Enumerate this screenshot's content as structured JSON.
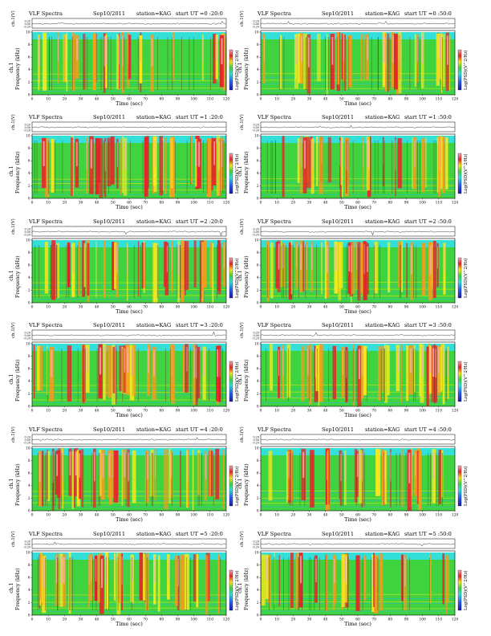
{
  "chart_data": [
    {
      "type": "heatmap",
      "header": {
        "instrument": "VLF Spectra",
        "date": "Sep10/2011",
        "station": "station=KAG",
        "start": "start UT =0 :20:0"
      },
      "ch_label": "ch.1(V)",
      "ch_ticks": [
        "0.20",
        "0.00",
        "-0.20"
      ],
      "ylabel_top": "ch.1",
      "ylabel": "Frequency (kHz)",
      "yticks": [
        "0",
        "2",
        "4",
        "6",
        "8",
        "10"
      ],
      "xlabel": "Time (sec)",
      "xticks": [
        "0",
        "10",
        "20",
        "30",
        "40",
        "50",
        "60",
        "70",
        "80",
        "90",
        "100",
        "110",
        "120"
      ],
      "xlim": [
        0,
        120
      ],
      "ylim": [
        0,
        10
      ],
      "colorbar_label": "Log(PSD)(V^2/Hz)"
    },
    {
      "type": "heatmap",
      "header": {
        "instrument": "VLF Spectra",
        "date": "Sep10/2011",
        "station": "station=KAG",
        "start": "start UT =0 :50:0"
      },
      "ch_label": "ch.1(V)",
      "ch_ticks": [
        "0.20",
        "0.00",
        "-0.20"
      ],
      "ylabel_top": "ch.1",
      "ylabel": "Frequency (kHz)",
      "yticks": [
        "0",
        "2",
        "4",
        "6",
        "8",
        "10"
      ],
      "xlabel": "Time (sec)",
      "xticks": [
        "0",
        "10",
        "20",
        "30",
        "40",
        "50",
        "60",
        "70",
        "80",
        "90",
        "100",
        "110",
        "120"
      ],
      "xlim": [
        0,
        120
      ],
      "ylim": [
        0,
        10
      ],
      "colorbar_label": "Log(PSD)(V^2/Hz)"
    },
    {
      "type": "heatmap",
      "header": {
        "instrument": "VLF Spectra",
        "date": "Sep10/2011",
        "station": "station=KAG",
        "start": "start UT =1 :20:0"
      },
      "ch_label": "ch.1(V)",
      "ch_ticks": [
        "0.20",
        "0.00",
        "-0.20"
      ],
      "ylabel_top": "ch.1",
      "ylabel": "Frequency (kHz)",
      "yticks": [
        "0",
        "2",
        "4",
        "6",
        "8",
        "10"
      ],
      "xlabel": "Time (sec)",
      "xticks": [
        "0",
        "10",
        "20",
        "30",
        "40",
        "50",
        "60",
        "70",
        "80",
        "90",
        "100",
        "110",
        "120"
      ],
      "xlim": [
        0,
        120
      ],
      "ylim": [
        0,
        10
      ],
      "colorbar_label": "Log(PSD)(V^2/Hz)"
    },
    {
      "type": "heatmap",
      "header": {
        "instrument": "VLF Spectra",
        "date": "Sep10/2011",
        "station": "station=KAG",
        "start": "start UT =1 :50:0"
      },
      "ch_label": "ch.1(V)",
      "ch_ticks": [
        "0.20",
        "0.00",
        "-0.20"
      ],
      "ylabel_top": "ch.1",
      "ylabel": "Frequency (kHz)",
      "yticks": [
        "0",
        "2",
        "4",
        "6",
        "8",
        "10"
      ],
      "xlabel": "Time (sec)",
      "xticks": [
        "0",
        "10",
        "20",
        "30",
        "40",
        "50",
        "60",
        "70",
        "80",
        "90",
        "100",
        "110",
        "120"
      ],
      "xlim": [
        0,
        120
      ],
      "ylim": [
        0,
        10
      ],
      "colorbar_label": "Log(PSD)(V^2/Hz)"
    },
    {
      "type": "heatmap",
      "header": {
        "instrument": "VLF Spectra",
        "date": "Sep10/2011",
        "station": "station=KAG",
        "start": "start UT =2 :20:0"
      },
      "ch_label": "ch.1(V)",
      "ch_ticks": [
        "0.20",
        "0.00",
        "-0.20"
      ],
      "ylabel_top": "ch.1",
      "ylabel": "Frequency (kHz)",
      "yticks": [
        "0",
        "2",
        "4",
        "6",
        "8",
        "10"
      ],
      "xlabel": "Time (sec)",
      "xticks": [
        "0",
        "10",
        "20",
        "30",
        "40",
        "50",
        "60",
        "70",
        "80",
        "90",
        "100",
        "110",
        "120"
      ],
      "xlim": [
        0,
        120
      ],
      "ylim": [
        0,
        10
      ],
      "colorbar_label": "Log(PSD)(V^2/Hz)"
    },
    {
      "type": "heatmap",
      "header": {
        "instrument": "VLF Spectra",
        "date": "Sep10/2011",
        "station": "station=KAG",
        "start": "start UT =2 :50:0"
      },
      "ch_label": "ch.1(V)",
      "ch_ticks": [
        "0.20",
        "0.00",
        "-0.20"
      ],
      "ylabel_top": "ch.1",
      "ylabel": "Frequency (kHz)",
      "yticks": [
        "0",
        "2",
        "4",
        "6",
        "8",
        "10"
      ],
      "xlabel": "Time (sec)",
      "xticks": [
        "0",
        "10",
        "20",
        "30",
        "40",
        "50",
        "60",
        "70",
        "80",
        "90",
        "100",
        "110",
        "120"
      ],
      "xlim": [
        0,
        120
      ],
      "ylim": [
        0,
        10
      ],
      "colorbar_label": "Log(PSD)(V^2/Hz)"
    },
    {
      "type": "heatmap",
      "header": {
        "instrument": "VLF Spectra",
        "date": "Sep10/2011",
        "station": "station=KAG",
        "start": "start UT =3 :20:0"
      },
      "ch_label": "ch.1(V)",
      "ch_ticks": [
        "0.20",
        "0.00",
        "-0.20"
      ],
      "ylabel_top": "ch.1",
      "ylabel": "Frequency (kHz)",
      "yticks": [
        "0",
        "2",
        "4",
        "6",
        "8",
        "10"
      ],
      "xlabel": "Time (sec)",
      "xticks": [
        "0",
        "10",
        "20",
        "30",
        "40",
        "50",
        "60",
        "70",
        "80",
        "90",
        "100",
        "110",
        "120"
      ],
      "xlim": [
        0,
        120
      ],
      "ylim": [
        0,
        10
      ],
      "colorbar_label": "Log(PSD)(V^2/Hz)"
    },
    {
      "type": "heatmap",
      "header": {
        "instrument": "VLF Spectra",
        "date": "Sep10/2011",
        "station": "station=KAG",
        "start": "start UT =3 :50:0"
      },
      "ch_label": "ch.1(V)",
      "ch_ticks": [
        "0.20",
        "0.00",
        "-0.20"
      ],
      "ylabel_top": "ch.1",
      "ylabel": "Frequency (kHz)",
      "yticks": [
        "0",
        "2",
        "4",
        "6",
        "8",
        "10"
      ],
      "xlabel": "Time (sec)",
      "xticks": [
        "0",
        "10",
        "20",
        "30",
        "40",
        "50",
        "60",
        "70",
        "80",
        "90",
        "100",
        "110",
        "120"
      ],
      "xlim": [
        0,
        120
      ],
      "ylim": [
        0,
        10
      ],
      "colorbar_label": "Log(PSD)(V^2/Hz)"
    },
    {
      "type": "heatmap",
      "header": {
        "instrument": "VLF Spectra",
        "date": "Sep10/2011",
        "station": "station=KAG",
        "start": "start UT =4 :20:0"
      },
      "ch_label": "ch.1(V)",
      "ch_ticks": [
        "0.20",
        "0.00",
        "-0.20"
      ],
      "ylabel_top": "ch.1",
      "ylabel": "Frequency (kHz)",
      "yticks": [
        "0",
        "2",
        "4",
        "6",
        "8",
        "10"
      ],
      "xlabel": "Time (sec)",
      "xticks": [
        "0",
        "10",
        "20",
        "30",
        "40",
        "50",
        "60",
        "70",
        "80",
        "90",
        "100",
        "110",
        "120"
      ],
      "xlim": [
        0,
        120
      ],
      "ylim": [
        0,
        10
      ],
      "colorbar_label": "Log(PSD)(V^2/Hz)"
    },
    {
      "type": "heatmap",
      "header": {
        "instrument": "VLF Spectra",
        "date": "Sep10/2011",
        "station": "station=KAG",
        "start": "start UT =4 :50:0"
      },
      "ch_label": "ch.1(V)",
      "ch_ticks": [
        "0.20",
        "0.00",
        "-0.20"
      ],
      "ylabel_top": "ch.1",
      "ylabel": "Frequency (kHz)",
      "yticks": [
        "0",
        "2",
        "4",
        "6",
        "8",
        "10"
      ],
      "xlabel": "Time (sec)",
      "xticks": [
        "0",
        "10",
        "20",
        "30",
        "40",
        "50",
        "60",
        "70",
        "80",
        "90",
        "100",
        "110",
        "120"
      ],
      "xlim": [
        0,
        120
      ],
      "ylim": [
        0,
        10
      ],
      "colorbar_label": "Log(PSD)(V^2/Hz)"
    },
    {
      "type": "heatmap",
      "header": {
        "instrument": "VLF Spectra",
        "date": "Sep10/2011",
        "station": "station=KAG",
        "start": "start UT =5 :20:0"
      },
      "ch_label": "ch.1(V)",
      "ch_ticks": [
        "0.20",
        "0.00",
        "-0.20"
      ],
      "ylabel_top": "ch.1",
      "ylabel": "Frequency (kHz)",
      "yticks": [
        "0",
        "2",
        "4",
        "6",
        "8",
        "10"
      ],
      "xlabel": "Time (sec)",
      "xticks": [
        "0",
        "10",
        "20",
        "30",
        "40",
        "50",
        "60",
        "70",
        "80",
        "90",
        "100",
        "110",
        "120"
      ],
      "xlim": [
        0,
        120
      ],
      "ylim": [
        0,
        10
      ],
      "colorbar_label": "Log(PSD)(V^2/Hz)"
    },
    {
      "type": "heatmap",
      "header": {
        "instrument": "VLF Spectra",
        "date": "Sep10/2011",
        "station": "station=KAG",
        "start": "start UT =5 :50:0"
      },
      "ch_label": "ch.1(V)",
      "ch_ticks": [
        "0.20",
        "0.00",
        "-0.20"
      ],
      "ylabel_top": "ch.1",
      "ylabel": "Frequency (kHz)",
      "yticks": [
        "0",
        "2",
        "4",
        "6",
        "8",
        "10"
      ],
      "xlabel": "Time (sec)",
      "xticks": [
        "0",
        "10",
        "20",
        "30",
        "40",
        "50",
        "60",
        "70",
        "80",
        "90",
        "100",
        "110",
        "120"
      ],
      "xlim": [
        0,
        120
      ],
      "ylim": [
        0,
        10
      ],
      "colorbar_label": "Log(PSD)(V^2/Hz)"
    }
  ],
  "colormap": [
    "#1a1aa8",
    "#2a5cf0",
    "#2fb7f0",
    "#33e0d8",
    "#3fd33f",
    "#c8ea2a",
    "#f4e81e",
    "#f49c1e",
    "#e4262a",
    "#f0b0b0"
  ]
}
